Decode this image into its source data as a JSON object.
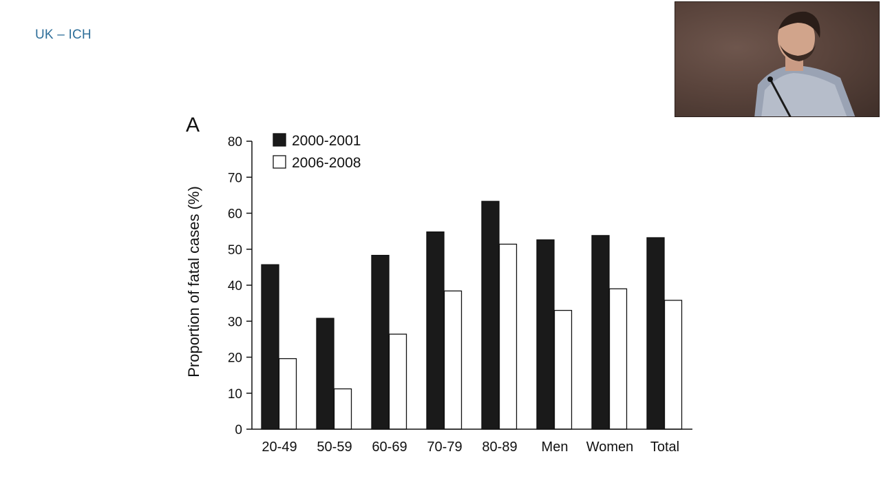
{
  "slide": {
    "title": "UK – ICH"
  },
  "chart_data": {
    "type": "bar",
    "panel_label": "A",
    "title": "",
    "xlabel": "",
    "ylabel": "Proportion of fatal cases (%)",
    "ylim": [
      0,
      80
    ],
    "yticks": [
      0,
      10,
      20,
      30,
      40,
      50,
      60,
      70,
      80
    ],
    "categories": [
      "20-49",
      "50-59",
      "60-69",
      "70-79",
      "80-89",
      "Men",
      "Women",
      "Total"
    ],
    "series": [
      {
        "name": "2000-2001",
        "color": "#1a1a1a",
        "values": [
          45.7,
          30.8,
          48.3,
          54.8,
          63.3,
          52.6,
          53.8,
          53.2
        ]
      },
      {
        "name": "2006-2008",
        "color": "#ffffff",
        "values": [
          19.6,
          11.2,
          26.4,
          38.4,
          51.4,
          33.0,
          39.0,
          35.8
        ]
      }
    ],
    "legend": "top-left",
    "grid": false
  },
  "webcam": {
    "icon": "presenter-video-icon"
  }
}
